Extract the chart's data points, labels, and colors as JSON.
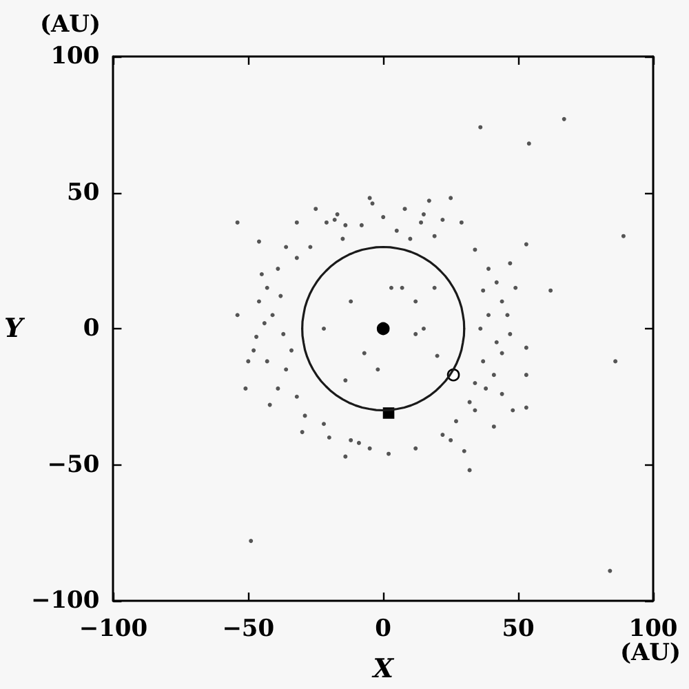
{
  "chart_data": {
    "type": "scatter",
    "xlabel": "X",
    "ylabel": "Y",
    "annotations": [
      "(AU)",
      "(AU)"
    ],
    "xlim": [
      -100,
      100
    ],
    "ylim": [
      -100,
      100
    ],
    "xticks": [
      -100,
      -50,
      0,
      50,
      100
    ],
    "yticks": [
      -100,
      -50,
      0,
      50,
      100
    ],
    "series": [
      {
        "color": "#555555",
        "marker": "circle",
        "x": [
          -54,
          -18,
          -17,
          -14,
          -4,
          8,
          14,
          17,
          -36,
          -32,
          -39,
          -43,
          -46,
          -41,
          -44,
          -47,
          -37,
          -43,
          -36,
          -39,
          -32,
          -29,
          -22,
          -12,
          -9,
          2,
          -14,
          -51,
          -54,
          -46,
          -12,
          3,
          -7,
          7,
          -14,
          -22,
          -2,
          12,
          15,
          25,
          19,
          29,
          34,
          39,
          42,
          37,
          46,
          39,
          36,
          42,
          44,
          37,
          41,
          34,
          32,
          34,
          27,
          41,
          22,
          32,
          49,
          53,
          53,
          47,
          62,
          86,
          89,
          53,
          19,
          12,
          20,
          15,
          36,
          67,
          54,
          84,
          53,
          -49,
          -32,
          -21,
          -25,
          -8,
          0,
          5,
          -5,
          22,
          12,
          25,
          -20,
          -5,
          -48,
          -45,
          -34,
          -38,
          44,
          47,
          38,
          44,
          -27,
          10,
          -15,
          30,
          -30,
          -42,
          -50,
          48
        ],
        "values": [
          39,
          40,
          42,
          38,
          46,
          44,
          39,
          47,
          30,
          26,
          22,
          15,
          10,
          5,
          2,
          -3,
          -2,
          -12,
          -15,
          -22,
          -25,
          -32,
          -35,
          -41,
          -42,
          -46,
          -47,
          -22,
          5,
          32,
          10,
          15,
          -9,
          15,
          -19,
          0,
          -15,
          -2,
          42,
          48,
          34,
          39,
          29,
          22,
          17,
          14,
          5,
          5,
          0,
          -5,
          -9,
          -12,
          -17,
          -20,
          -27,
          -30,
          -34,
          -36,
          -39,
          -52,
          15,
          -7,
          -17,
          24,
          14,
          -12,
          34,
          31,
          15,
          10,
          -10,
          0,
          74,
          77,
          68,
          -89,
          -29,
          -78,
          39,
          39,
          44,
          38,
          41,
          36,
          48,
          40,
          -44,
          -41,
          -40,
          -44,
          -8,
          20,
          -8,
          12,
          -24,
          -2,
          -22,
          10,
          30,
          33,
          33,
          -45,
          -38,
          -28,
          -12,
          -30
        ]
      },
      {
        "color": "#000000",
        "marker": "circle",
        "x": [
          0
        ],
        "values": [
          0
        ]
      },
      {
        "type": "line",
        "color": "#1a1a1a",
        "marker": "none",
        "line_style": "solid",
        "x": [
          -30.0,
          -29.9,
          -29.5,
          -29.0,
          -28.2,
          -27.2,
          -26.0,
          -24.6,
          -23.0,
          -21.2,
          -19.3,
          -17.2,
          -15.0,
          -12.7,
          -10.3,
          -7.8,
          -5.2,
          -2.6,
          0.0,
          2.6,
          5.2,
          7.8,
          10.3,
          12.7,
          15.0,
          17.2,
          19.3,
          21.2,
          23.0,
          24.6,
          26.0,
          27.2,
          28.2,
          29.0,
          29.5,
          29.9,
          30.0
        ],
        "values": [
          0.0,
          2.6,
          5.2,
          7.8,
          10.3,
          12.7,
          15.0,
          17.2,
          19.3,
          21.2,
          23.0,
          24.6,
          26.0,
          27.2,
          28.2,
          29.0,
          29.5,
          29.9,
          30.0,
          29.9,
          29.5,
          29.0,
          28.2,
          27.2,
          26.0,
          24.6,
          23.0,
          21.2,
          19.3,
          17.2,
          15.0,
          12.7,
          10.3,
          7.8,
          5.2,
          2.6,
          0.0
        ]
      },
      {
        "type": "line",
        "color": "#1a1a1a",
        "marker": "none",
        "line_style": "solid",
        "x": [
          -30.0,
          -29.9,
          -29.5,
          -29.0,
          -28.2,
          -27.2,
          -26.0,
          -24.6,
          -23.0,
          -21.2,
          -19.3,
          -17.2,
          -15.0,
          -12.7,
          -10.3,
          -7.8,
          -5.2,
          -2.6,
          0.0,
          2.6,
          5.2,
          7.8,
          10.3,
          12.7,
          15.0,
          17.2,
          19.3,
          21.2,
          23.0,
          24.6,
          26.0,
          27.2,
          28.2,
          29.0,
          29.5,
          29.9,
          30.0
        ],
        "values": [
          0.0,
          -2.6,
          -5.2,
          -7.8,
          -10.3,
          -12.7,
          -15.0,
          -17.2,
          -19.3,
          -21.2,
          -23.0,
          -24.6,
          -26.0,
          -27.2,
          -28.2,
          -29.0,
          -29.5,
          -29.9,
          -30.0,
          -29.9,
          -29.5,
          -29.0,
          -28.2,
          -27.2,
          -26.0,
          -24.6,
          -23.0,
          -21.2,
          -19.3,
          -17.2,
          -15.0,
          -12.7,
          -10.3,
          -7.8,
          -5.2,
          -2.6,
          0.0
        ]
      },
      {
        "color": "#000000",
        "marker": "square",
        "x": [
          2
        ],
        "values": [
          -31
        ]
      },
      {
        "color": "#ffffff",
        "marker": "circle",
        "x": [
          26
        ],
        "values": [
          -17
        ]
      }
    ]
  }
}
